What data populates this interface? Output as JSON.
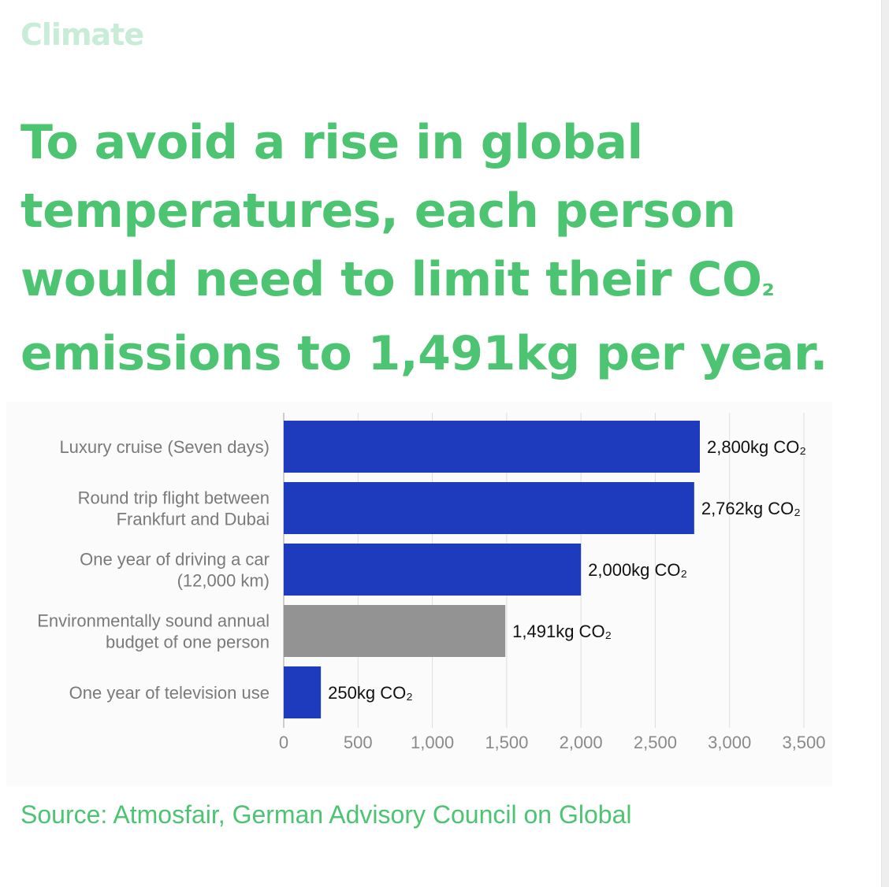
{
  "brand": {
    "name": "Climate",
    "color": "#c8ecd7"
  },
  "headline": {
    "text": "To avoid a rise in global temperatures, each person would need to limit their CO₂ emissions to 1,491kg per year.",
    "line1": "To avoid a rise in global",
    "line2": "temperatures, each person",
    "line3_before_sub": "would need to limit their CO",
    "line3_sub": "₂",
    "line4": "emissions to 1,491kg per year.",
    "color": "#4cc472"
  },
  "chart_data": {
    "type": "bar",
    "orientation": "horizontal",
    "categories": [
      [
        "Luxury cruise (Seven days)"
      ],
      [
        "Round trip flight between",
        "Frankfurt and Dubai"
      ],
      [
        "One year of driving a car",
        "(12,000 km)"
      ],
      [
        "Environmentally sound annual",
        "budget of one person"
      ],
      [
        "One year of television use"
      ]
    ],
    "values": [
      2800,
      2762,
      2000,
      1491,
      250
    ],
    "data_labels": [
      "2,800kg CO₂",
      "2,762kg CO₂",
      "2,000kg CO₂",
      "1,491kg CO₂",
      "250kg CO₂"
    ],
    "bar_colors": [
      "#1f3bbd",
      "#1f3bbd",
      "#1f3bbd",
      "#939393",
      "#1f3bbd"
    ],
    "xlim": [
      0,
      3500
    ],
    "x_ticks": [
      0,
      500,
      1000,
      1500,
      2000,
      2500,
      3000,
      3500
    ],
    "x_tick_labels": [
      "0",
      "500",
      "1,000",
      "1,500",
      "2,000",
      "2,500",
      "3,000",
      "3,500"
    ],
    "grid": true,
    "title": "",
    "xlabel": "",
    "ylabel": ""
  },
  "source": {
    "text": "Source: Atmosfair, German Advisory Council on Global"
  }
}
